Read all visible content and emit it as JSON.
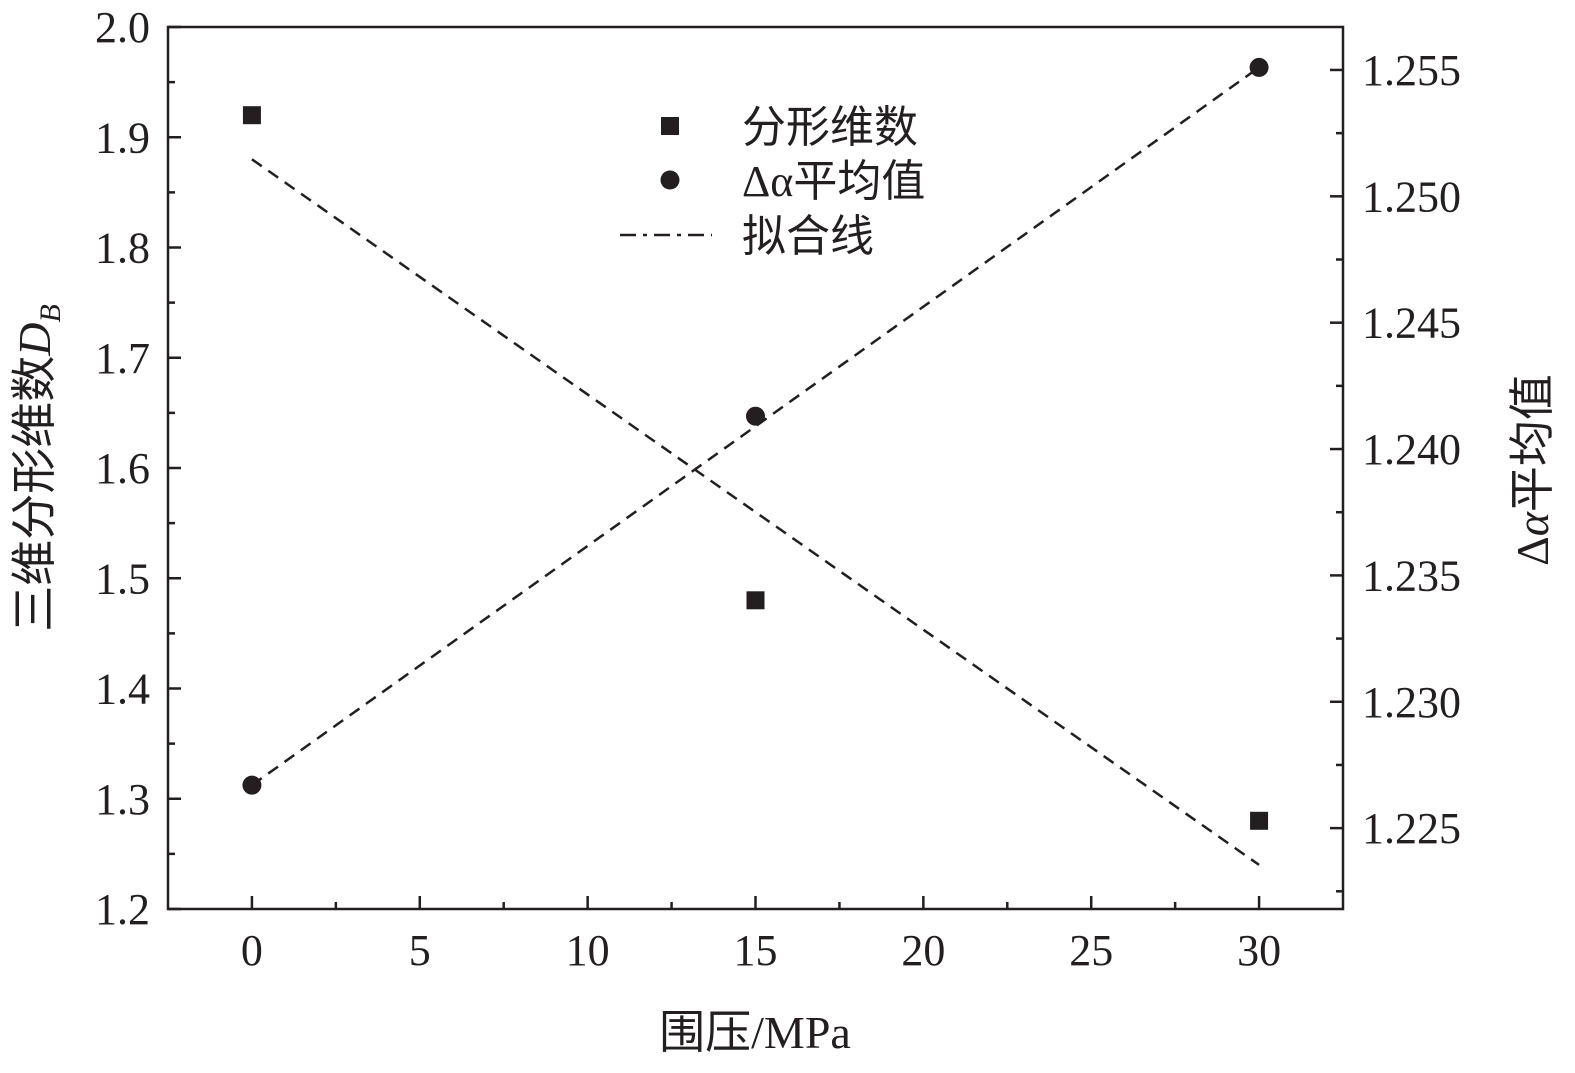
{
  "chart_data": {
    "type": "scatter",
    "x_axis": {
      "label": "围压/MPa",
      "range": [
        -2.5,
        32.5
      ],
      "ticks": [
        0,
        5,
        10,
        15,
        20,
        25,
        30
      ],
      "tick_labels": [
        "0",
        "5",
        "10",
        "15",
        "20",
        "25",
        "30"
      ],
      "minor_ticks": [
        2.5,
        7.5,
        12.5,
        17.5,
        22.5,
        27.5
      ]
    },
    "y_left": {
      "label_main": "三维分形维数",
      "label_symbol": "D",
      "label_subscript": "B",
      "range": [
        1.2,
        2.0
      ],
      "ticks": [
        1.2,
        1.3,
        1.4,
        1.5,
        1.6,
        1.7,
        1.8,
        1.9,
        2.0
      ],
      "tick_labels": [
        "1.2",
        "1.3",
        "1.4",
        "1.5",
        "1.6",
        "1.7",
        "1.8",
        "1.9",
        "2.0"
      ],
      "minor_ticks": [
        1.25,
        1.35,
        1.45,
        1.55,
        1.65,
        1.75,
        1.85,
        1.95
      ]
    },
    "y_right": {
      "label_prefix": "Δ",
      "label_symbol": "α",
      "label_suffix": "平均值",
      "range": [
        1.2218,
        1.2567
      ],
      "ticks": [
        1.225,
        1.23,
        1.235,
        1.24,
        1.245,
        1.25,
        1.255
      ],
      "tick_labels": [
        "1.225",
        "1.230",
        "1.235",
        "1.240",
        "1.245",
        "1.250",
        "1.255"
      ],
      "minor_ticks": [
        1.2225,
        1.2275,
        1.2325,
        1.2375,
        1.2425,
        1.2475,
        1.2525
      ]
    },
    "series": [
      {
        "name": "分形维数",
        "axis": "left",
        "marker": "square",
        "points": [
          [
            0,
            1.92
          ],
          [
            15,
            1.48
          ],
          [
            30,
            1.28
          ]
        ]
      },
      {
        "name": "Δα平均值",
        "axis": "right",
        "marker": "circle",
        "points": [
          [
            0,
            1.2267
          ],
          [
            15,
            1.2413
          ],
          [
            30,
            1.2551
          ]
        ]
      }
    ],
    "fit_lines": [
      {
        "axis": "left",
        "x": [
          0,
          30
        ],
        "y": [
          1.88,
          1.24
        ]
      },
      {
        "axis": "right",
        "x": [
          0,
          30
        ],
        "y": [
          1.2267,
          1.2551
        ]
      }
    ],
    "legend": {
      "position": "top-center",
      "entries": [
        {
          "label": "分形维数",
          "marker": "square"
        },
        {
          "label": "Δα平均值",
          "marker": "circle"
        },
        {
          "label": "拟合线",
          "marker": "dash-dot"
        }
      ]
    },
    "colors": {
      "ink": "#231f20",
      "background": "#ffffff"
    },
    "grid": false
  }
}
